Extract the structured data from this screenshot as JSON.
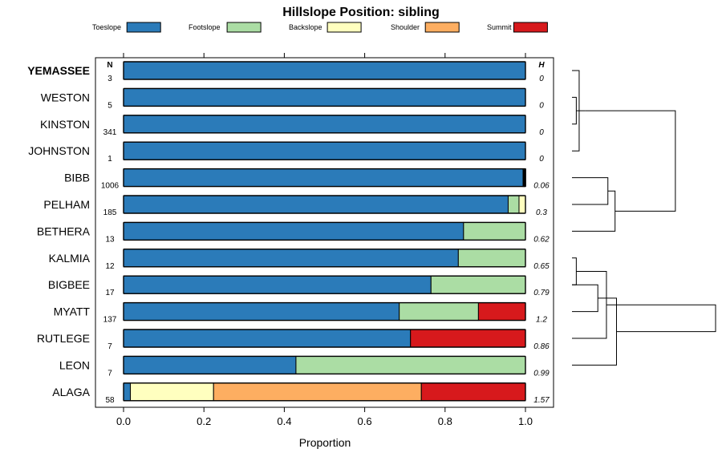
{
  "chart_data": {
    "type": "bar",
    "title": "Hillslope Position: sibling",
    "xlabel": "Proportion",
    "xlim": [
      0,
      1
    ],
    "xticks": [
      0.0,
      0.2,
      0.4,
      0.6,
      0.8,
      1.0
    ],
    "xtick_labels": [
      "0.0",
      "0.2",
      "0.4",
      "0.6",
      "0.8",
      "1.0"
    ],
    "n_header": "N",
    "h_header": "H",
    "series": [
      {
        "name": "Toeslope",
        "color": "#2b7bb9"
      },
      {
        "name": "Footslope",
        "color": "#abdda4"
      },
      {
        "name": "Backslope",
        "color": "#ffffbf"
      },
      {
        "name": "Shoulder",
        "color": "#fdae61"
      },
      {
        "name": "Summit",
        "color": "#d7191c"
      }
    ],
    "rows": [
      {
        "label": "YEMASSEE",
        "bold": true,
        "n": "3",
        "h": "0",
        "values": [
          1.0,
          0,
          0,
          0,
          0
        ]
      },
      {
        "label": "WESTON",
        "n": "5",
        "h": "0",
        "values": [
          1.0,
          0,
          0,
          0,
          0
        ]
      },
      {
        "label": "KINSTON",
        "n": "341",
        "h": "0",
        "values": [
          1.0,
          0,
          0,
          0,
          0
        ]
      },
      {
        "label": "JOHNSTON",
        "n": "1",
        "h": "0",
        "values": [
          1.0,
          0,
          0,
          0,
          0
        ]
      },
      {
        "label": "BIBB",
        "n": "1006",
        "h": "0.06",
        "values": [
          0.994,
          0.002,
          0.002,
          0.001,
          0.001
        ]
      },
      {
        "label": "PELHAM",
        "n": "185",
        "h": "0.3",
        "values": [
          0.957,
          0.027,
          0.016,
          0,
          0
        ]
      },
      {
        "label": "BETHERA",
        "n": "13",
        "h": "0.62",
        "values": [
          0.846,
          0.154,
          0,
          0,
          0
        ]
      },
      {
        "label": "KALMIA",
        "n": "12",
        "h": "0.65",
        "values": [
          0.833,
          0.167,
          0,
          0,
          0
        ]
      },
      {
        "label": "BIGBEE",
        "n": "17",
        "h": "0.79",
        "values": [
          0.765,
          0.235,
          0,
          0,
          0
        ]
      },
      {
        "label": "MYATT",
        "n": "137",
        "h": "1.2",
        "values": [
          0.686,
          0.197,
          0,
          0,
          0.117
        ]
      },
      {
        "label": "RUTLEGE",
        "n": "7",
        "h": "0.86",
        "values": [
          0.714,
          0,
          0,
          0,
          0.286
        ]
      },
      {
        "label": "LEON",
        "n": "7",
        "h": "0.99",
        "values": [
          0.429,
          0.571,
          0,
          0,
          0
        ]
      },
      {
        "label": "ALAGA",
        "n": "58",
        "h": "1.57",
        "values": [
          0.017,
          0,
          0.207,
          0.517,
          0.259
        ]
      }
    ],
    "dendrogram": {
      "nodes": [
        {
          "children": [
            1,
            2
          ],
          "height": 0.03
        },
        {
          "children": [
            0,
            3
          ],
          "height": 0.05
        },
        {
          "children": [
            4,
            5
          ],
          "height": 0.25
        },
        {
          "children": [
            13,
            14
          ],
          "height": 0.09
        },
        {
          "children": [
            15,
            6
          ],
          "height": 0.3
        },
        {
          "children": [
            7,
            8
          ],
          "height": 0.03
        },
        {
          "children": [
            8,
            9
          ],
          "height": 0.18
        },
        {
          "children": [
            18,
            10
          ],
          "height": 0.24
        },
        {
          "children": [
            19,
            11
          ],
          "height": 0.31
        },
        {
          "children": [
            16,
            17
          ],
          "height": 0.72
        },
        {
          "children": [
            20,
            21
          ],
          "height": 1.0
        }
      ]
    }
  }
}
